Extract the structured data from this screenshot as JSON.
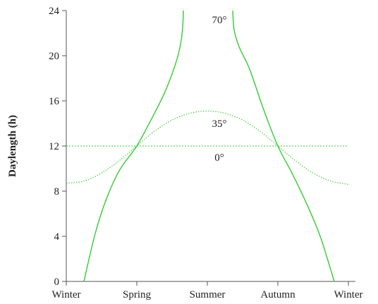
{
  "chart_data": {
    "type": "line",
    "title": "",
    "xlabel": "",
    "ylabel": "Daylength (h)",
    "x_categories": [
      "Winter",
      "Spring",
      "Summer",
      "Autumn",
      "Winter"
    ],
    "xlim": [
      0,
      4
    ],
    "ylim": [
      0,
      24
    ],
    "yticks": [
      0,
      4,
      8,
      12,
      16,
      20,
      24
    ],
    "grid": false,
    "line_color": "#33cc33",
    "series": [
      {
        "name": "0°",
        "style": "dashed",
        "points": [
          [
            0,
            12
          ],
          [
            4,
            12
          ]
        ]
      },
      {
        "name": "35°",
        "style": "dotted",
        "points": [
          [
            0,
            8.7
          ],
          [
            0.25,
            8.9
          ],
          [
            0.5,
            9.6
          ],
          [
            0.75,
            10.7
          ],
          [
            1,
            12
          ],
          [
            1.25,
            13.3
          ],
          [
            1.5,
            14.3
          ],
          [
            1.75,
            14.9
          ],
          [
            2,
            15.1
          ],
          [
            2.25,
            14.9
          ],
          [
            2.5,
            14.3
          ],
          [
            2.75,
            13.3
          ],
          [
            3,
            12
          ],
          [
            3.25,
            10.7
          ],
          [
            3.5,
            9.6
          ],
          [
            3.75,
            8.9
          ],
          [
            4,
            8.6
          ]
        ]
      },
      {
        "name": "70°",
        "style": "solid",
        "segments": [
          [
            [
              0.25,
              0
            ],
            [
              0.4,
              4
            ],
            [
              0.55,
              7
            ],
            [
              0.75,
              9.8
            ],
            [
              1,
              12
            ],
            [
              1.2,
              14.3
            ],
            [
              1.4,
              16.8
            ],
            [
              1.55,
              19.3
            ],
            [
              1.62,
              21
            ],
            [
              1.65,
              22.5
            ],
            [
              1.66,
              24
            ]
          ],
          [
            [
              2.36,
              24
            ],
            [
              2.38,
              22.3
            ],
            [
              2.45,
              20.8
            ],
            [
              2.6,
              18.8
            ],
            [
              2.8,
              15.2
            ],
            [
              3,
              12
            ],
            [
              3.2,
              9.6
            ],
            [
              3.4,
              7
            ],
            [
              3.6,
              4
            ],
            [
              3.8,
              0
            ]
          ]
        ]
      }
    ],
    "series_labels": [
      {
        "text": "70°",
        "x": 2,
        "y": 23.2
      },
      {
        "text": "35°",
        "x": 2,
        "y": 14
      },
      {
        "text": "0°",
        "x": 2,
        "y": 11
      }
    ]
  }
}
